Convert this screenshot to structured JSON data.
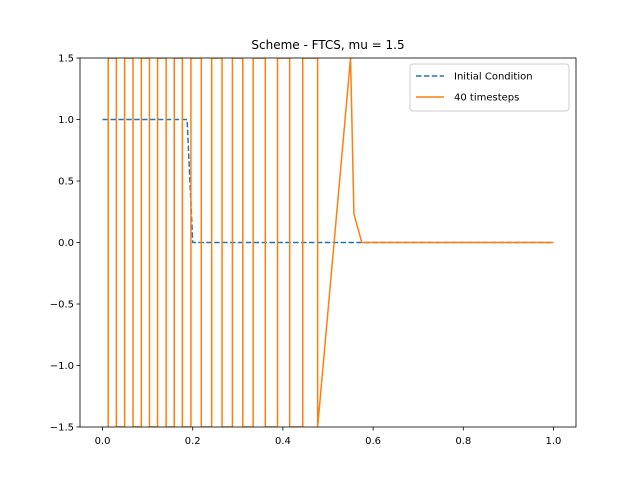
{
  "chart_data": {
    "type": "line",
    "title": "Scheme - FTCS, mu = 1.5",
    "xlabel": "",
    "ylabel": "",
    "xlim": [
      -0.05,
      1.05
    ],
    "ylim": [
      -1.5,
      1.5
    ],
    "xticks": [
      0.0,
      0.2,
      0.4,
      0.6,
      0.8,
      1.0
    ],
    "xtick_labels": [
      "0.0",
      "0.2",
      "0.4",
      "0.6",
      "0.8",
      "1.0"
    ],
    "yticks": [
      -1.5,
      -1.0,
      -0.5,
      0.0,
      0.5,
      1.0,
      1.5
    ],
    "ytick_labels": [
      "−1.5",
      "−1.0",
      "−0.5",
      "0.0",
      "0.5",
      "1.0",
      "1.5"
    ],
    "grid": false,
    "legend_position": "upper right",
    "series": [
      {
        "name": "Initial Condition",
        "color": "#1f77b4",
        "style": "dashed",
        "x": [
          0.0,
          0.1875,
          0.2,
          1.0
        ],
        "y": [
          1.0,
          1.0,
          0.0,
          0.0
        ]
      },
      {
        "name": "40 timesteps",
        "color": "#ff7f0e",
        "style": "solid",
        "x": [
          0.0125,
          0.0125,
          0.0306,
          0.0306,
          0.049,
          0.049,
          0.0675,
          0.0675,
          0.086,
          0.086,
          0.104,
          0.104,
          0.122,
          0.122,
          0.141,
          0.141,
          0.159,
          0.159,
          0.177,
          0.177,
          0.196,
          0.196,
          0.219,
          0.219,
          0.242,
          0.242,
          0.265,
          0.265,
          0.288,
          0.288,
          0.311,
          0.311,
          0.334,
          0.334,
          0.361,
          0.361,
          0.388,
          0.388,
          0.415,
          0.415,
          0.444,
          0.444,
          0.477,
          0.477,
          0.55,
          0.5575,
          0.575,
          1.0
        ],
        "y": [
          -1.5,
          1.5,
          1.5,
          -1.5,
          -1.5,
          1.5,
          1.5,
          -1.5,
          -1.5,
          1.5,
          1.5,
          -1.5,
          -1.5,
          1.5,
          1.5,
          -1.5,
          -1.5,
          1.5,
          1.5,
          -1.5,
          -1.5,
          1.5,
          1.5,
          -1.5,
          -1.5,
          1.5,
          1.5,
          -1.5,
          -1.5,
          1.5,
          1.5,
          -1.5,
          -1.5,
          1.5,
          1.5,
          -1.5,
          -1.5,
          1.5,
          1.5,
          -1.5,
          -1.5,
          1.5,
          1.5,
          -1.5,
          1.5,
          0.23,
          0.0,
          0.0
        ]
      }
    ]
  }
}
